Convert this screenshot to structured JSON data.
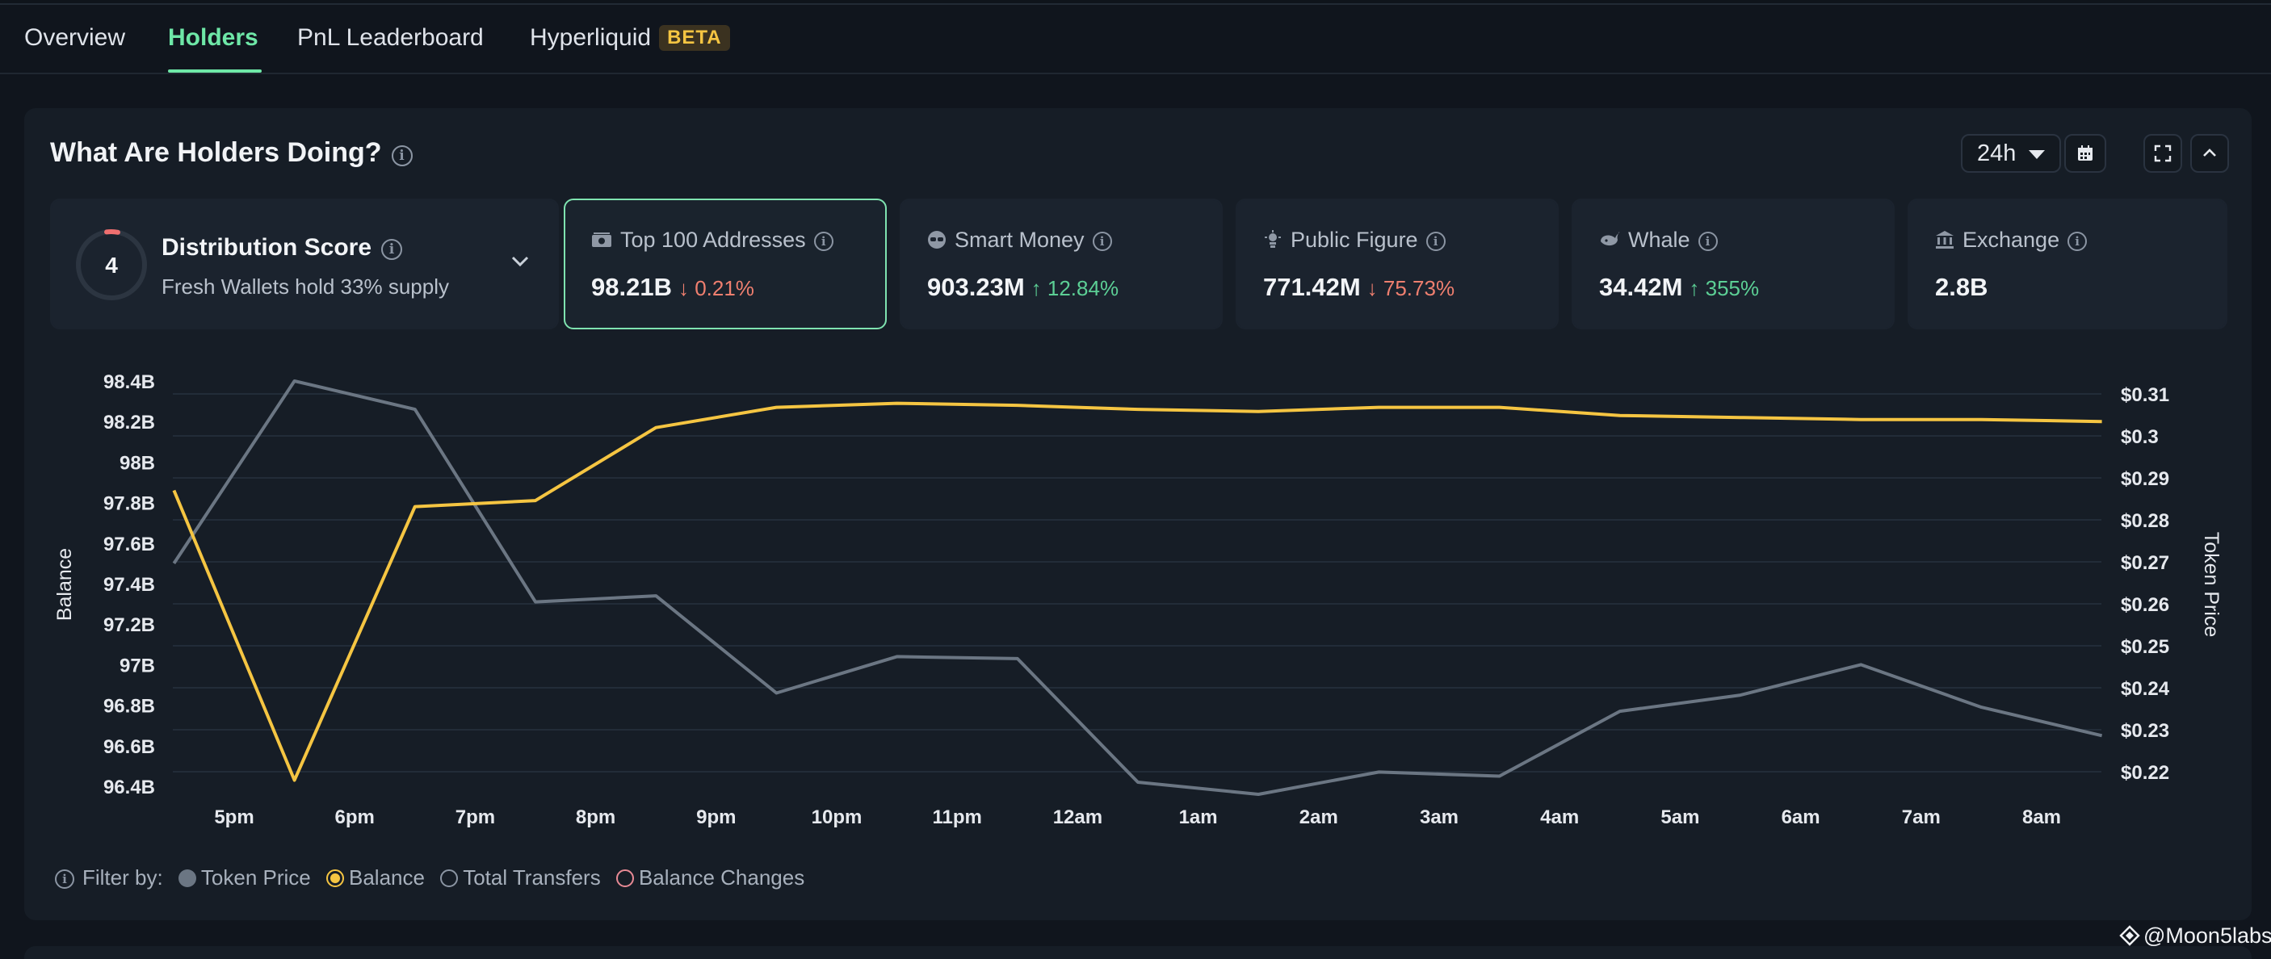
{
  "tabs": [
    {
      "label": "Overview"
    },
    {
      "label": "Holders"
    },
    {
      "label": "PnL Leaderboard"
    },
    {
      "label": "Hyperliquid",
      "badge": "BETA"
    }
  ],
  "panel": {
    "title": "What Are Holders Doing?",
    "time_range": "24h"
  },
  "distribution": {
    "score": "4",
    "title": "Distribution Score",
    "subtitle": "Fresh Wallets hold 33% supply"
  },
  "cards": [
    {
      "label": "Top 100 Addresses",
      "value": "98.21B",
      "change": "0.21%",
      "direction": "down",
      "icon": "money-icon"
    },
    {
      "label": "Smart Money",
      "value": "903.23M",
      "change": "12.84%",
      "direction": "up",
      "icon": "smart-money-icon"
    },
    {
      "label": "Public Figure",
      "value": "771.42M",
      "change": "75.73%",
      "direction": "down",
      "icon": "public-figure-icon"
    },
    {
      "label": "Whale",
      "value": "34.42M",
      "change": "355%",
      "direction": "up",
      "icon": "whale-icon"
    },
    {
      "label": "Exchange",
      "value": "2.8B",
      "change": "",
      "direction": "none",
      "icon": "bank-icon"
    }
  ],
  "legend": {
    "prefix": "Filter by:",
    "items": [
      {
        "label": "Token Price",
        "style": "filled-gray"
      },
      {
        "label": "Balance",
        "style": "filled-yellow"
      },
      {
        "label": "Total Transfers",
        "style": "outline-gray"
      },
      {
        "label": "Balance Changes",
        "style": "outline-red"
      }
    ]
  },
  "watermark": "@Moon5labs",
  "colors": {
    "accent": "#6ee7a7",
    "balance_line": "#f5c542",
    "price_line": "#6b7683",
    "up": "#5ccf95",
    "down": "#ef7f6f"
  },
  "chart_data": {
    "type": "line",
    "x": [
      "5pm",
      "6pm",
      "7pm",
      "8pm",
      "9pm",
      "10pm",
      "11pm",
      "12am",
      "1am",
      "2am",
      "3am",
      "4am",
      "5am",
      "6am",
      "7am",
      "8am"
    ],
    "left_axis": {
      "label": "Balance",
      "ticks": [
        "98.4B",
        "98.2B",
        "98B",
        "97.8B",
        "97.6B",
        "97.4B",
        "97.2B",
        "97B",
        "96.8B",
        "96.6B",
        "96.4B"
      ],
      "range": [
        96.4,
        98.4
      ]
    },
    "right_axis": {
      "label": "Token Price",
      "ticks": [
        "$0.31",
        "$0.3",
        "$0.29",
        "$0.28",
        "$0.27",
        "$0.26",
        "$0.25",
        "$0.24",
        "$0.23",
        "$0.22"
      ],
      "range": [
        0.22,
        0.31
      ]
    },
    "series": [
      {
        "name": "Balance",
        "axis": "left",
        "x": [
          -0.5,
          0.5,
          1.5,
          2.5,
          3.5,
          4.5,
          5.5,
          6.5,
          7.5,
          8.5,
          9.5,
          10.5,
          11.5,
          12.5,
          13.5,
          14.5,
          15.5
        ],
        "values": [
          97.86,
          96.43,
          97.78,
          97.81,
          98.17,
          98.27,
          98.29,
          98.28,
          98.26,
          98.25,
          98.27,
          98.27,
          98.23,
          98.22,
          98.21,
          98.21,
          98.2
        ]
      },
      {
        "name": "Token Price",
        "axis": "left",
        "x": [
          -0.5,
          0.5,
          1.5,
          2.5,
          3.5,
          4.5,
          5.5,
          6.5,
          7.5,
          8.5,
          9.5,
          10.5,
          11.5,
          12.5,
          13.5,
          14.5,
          15.5
        ],
        "values": [
          97.5,
          98.4,
          98.26,
          97.31,
          97.34,
          96.86,
          97.04,
          97.03,
          96.42,
          96.36,
          96.47,
          96.45,
          96.77,
          96.85,
          97.0,
          96.79,
          96.65
        ]
      }
    ]
  }
}
